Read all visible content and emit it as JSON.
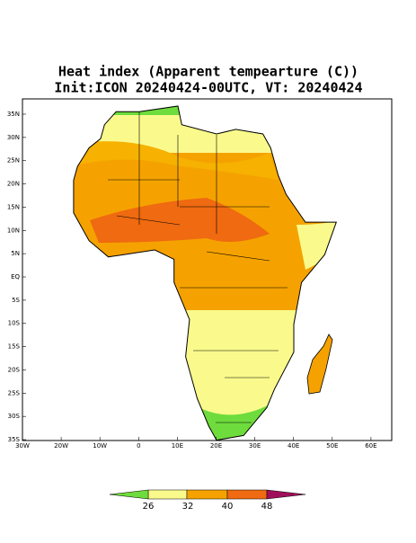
{
  "title": [
    "Heat index (Apparent tempearture (C))",
    "Init:ICON 20240424-00UTC, VT: 20240424"
  ],
  "map": {
    "lat_labels": [
      "35N",
      "30N",
      "25N",
      "20N",
      "15N",
      "10N",
      "5N",
      "EQ",
      "5S",
      "10S",
      "15S",
      "20S",
      "25S",
      "30S",
      "35S"
    ],
    "lon_labels": [
      "30W",
      "20W",
      "10W",
      "0",
      "10E",
      "20E",
      "30E",
      "40E",
      "50E",
      "60E"
    ]
  },
  "colorbar": {
    "labels": [
      "26",
      "32",
      "40",
      "48"
    ]
  }
}
